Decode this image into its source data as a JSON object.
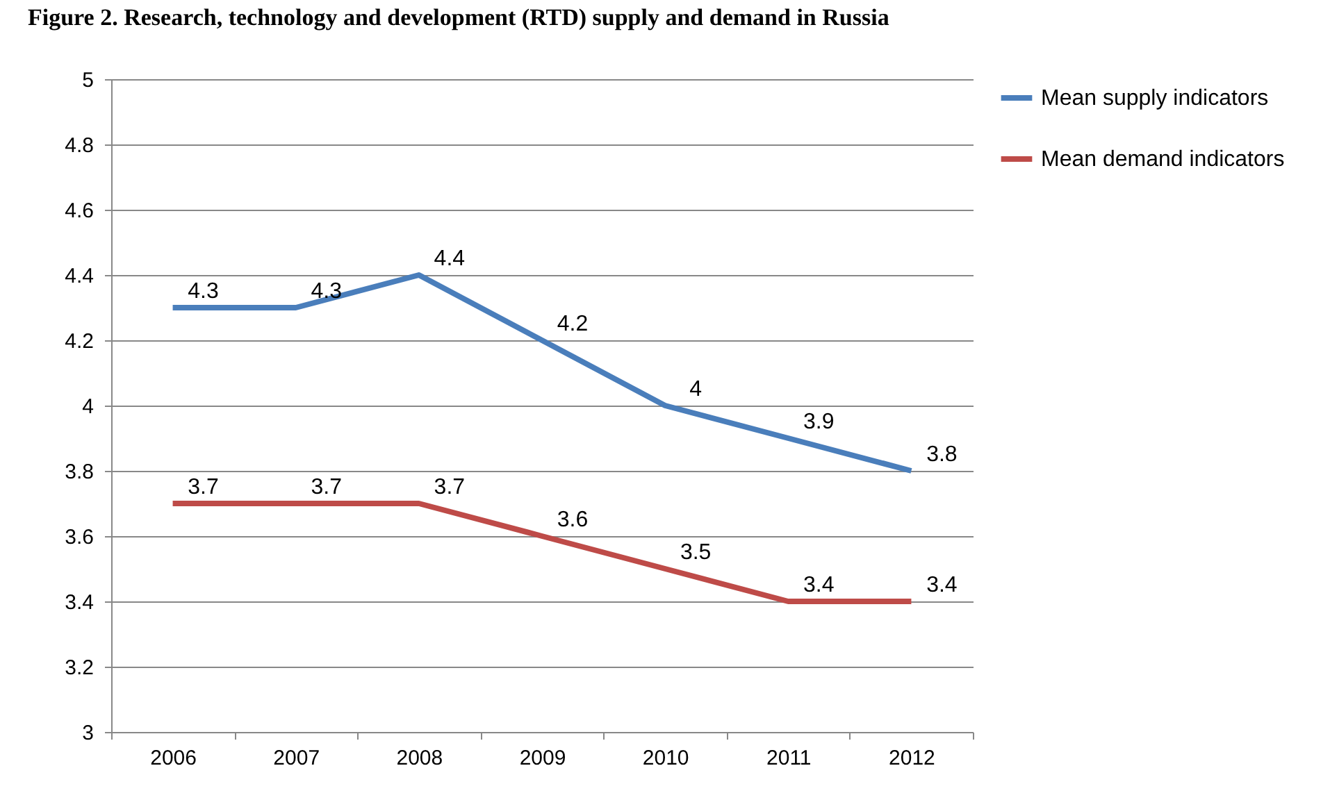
{
  "chart_data": {
    "type": "line",
    "title": "Figure 2. Research, technology and development (RTD) supply and demand in Russia",
    "categories": [
      "2006",
      "2007",
      "2008",
      "2009",
      "2010",
      "2011",
      "2012"
    ],
    "series": [
      {
        "name": "Mean supply indicators",
        "color": "#4a7ebb",
        "values": [
          4.3,
          4.3,
          4.4,
          4.2,
          4,
          3.9,
          3.8
        ]
      },
      {
        "name": "Mean demand indicators",
        "color": "#be4b48",
        "values": [
          3.7,
          3.7,
          3.7,
          3.6,
          3.5,
          3.4,
          3.4
        ]
      }
    ],
    "ylim": [
      3,
      5
    ],
    "yticks": [
      3,
      3.2,
      3.4,
      3.6,
      3.8,
      4,
      4.2,
      4.4,
      4.6,
      4.8,
      5
    ],
    "grid": "y",
    "legend": "right",
    "data_labels": true
  }
}
